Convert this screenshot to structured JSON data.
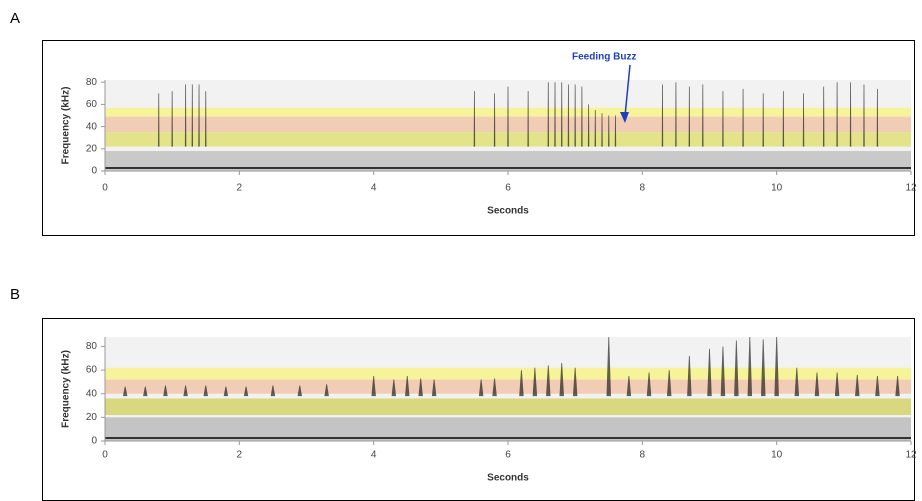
{
  "chart_data": [
    {
      "type": "spectrogram",
      "panel": "A",
      "xlabel": "Seconds",
      "ylabel": "Frequency (kHz)",
      "annotation": "Feeding Buzz",
      "xlim": [
        0,
        12
      ],
      "xticks": [
        0,
        2,
        4,
        6,
        8,
        10,
        12
      ],
      "ylim": [
        0,
        82
      ],
      "yticks": [
        0,
        20,
        40,
        60,
        80
      ],
      "bands": [
        {
          "range": [
            0,
            82
          ],
          "color": "#f2f2f2"
        },
        {
          "range": [
            0,
            18
          ],
          "color": "#c9c9c9"
        },
        {
          "range": [
            22,
            35
          ],
          "color": "#e3e38a"
        },
        {
          "range": [
            35,
            49
          ],
          "color": "#f2cdb6"
        },
        {
          "range": [
            49,
            57
          ],
          "color": "#f7f39a"
        }
      ],
      "pulses": {
        "x": [
          0.8,
          1.0,
          1.2,
          1.3,
          1.4,
          1.5,
          5.5,
          5.8,
          6.0,
          6.3,
          6.6,
          6.7,
          6.8,
          6.9,
          7.0,
          7.1,
          7.2,
          7.3,
          7.4,
          7.5,
          7.6,
          8.3,
          8.5,
          8.7,
          8.9,
          9.2,
          9.5,
          9.8,
          10.1,
          10.4,
          10.7,
          10.9,
          11.1,
          11.3,
          11.5
        ],
        "high": [
          70,
          72,
          78,
          78,
          78,
          72,
          72,
          70,
          76,
          72,
          80,
          80,
          80,
          78,
          78,
          76,
          60,
          55,
          52,
          50,
          50,
          78,
          80,
          76,
          78,
          72,
          74,
          70,
          72,
          70,
          76,
          80,
          80,
          78,
          74
        ],
        "low": [
          22,
          22,
          22,
          22,
          22,
          22,
          22,
          22,
          22,
          22,
          22,
          22,
          22,
          22,
          22,
          22,
          22,
          22,
          22,
          22,
          22,
          22,
          22,
          22,
          22,
          22,
          22,
          22,
          22,
          22,
          22,
          22,
          22,
          22,
          22
        ]
      }
    },
    {
      "type": "spectrogram",
      "panel": "B",
      "xlabel": "Seconds",
      "ylabel": "Frequency (kHz)",
      "xlim": [
        0,
        12
      ],
      "xticks": [
        0,
        2,
        4,
        6,
        8,
        10,
        12
      ],
      "ylim": [
        0,
        88
      ],
      "yticks": [
        0,
        20,
        40,
        60,
        80
      ],
      "bands": [
        {
          "range": [
            0,
            88
          ],
          "color": "#f2f2f2"
        },
        {
          "range": [
            0,
            20
          ],
          "color": "#c4c4c4"
        },
        {
          "range": [
            22,
            36
          ],
          "color": "#d9d77f"
        },
        {
          "range": [
            40,
            52
          ],
          "color": "#f2cdb6"
        },
        {
          "range": [
            52,
            62
          ],
          "color": "#f7f39a"
        }
      ],
      "pulses": {
        "x": [
          0.3,
          0.6,
          0.9,
          1.2,
          1.5,
          1.8,
          2.1,
          2.5,
          2.9,
          3.3,
          4.0,
          4.3,
          4.5,
          4.7,
          4.9,
          5.6,
          5.8,
          6.2,
          6.4,
          6.6,
          6.8,
          7.0,
          7.5,
          7.8,
          8.1,
          8.4,
          8.7,
          9.0,
          9.2,
          9.4,
          9.6,
          9.8,
          10.0,
          10.3,
          10.6,
          10.9,
          11.2,
          11.5,
          11.8
        ],
        "high": [
          46,
          46,
          47,
          47,
          47,
          46,
          46,
          47,
          47,
          48,
          55,
          52,
          55,
          53,
          52,
          52,
          53,
          60,
          62,
          64,
          66,
          62,
          88,
          55,
          58,
          60,
          72,
          78,
          80,
          85,
          88,
          86,
          88,
          62,
          58,
          58,
          56,
          55,
          55
        ],
        "low": [
          38,
          38,
          38,
          38,
          38,
          38,
          38,
          38,
          38,
          38,
          38,
          38,
          38,
          38,
          38,
          38,
          38,
          38,
          38,
          38,
          38,
          38,
          38,
          38,
          38,
          38,
          38,
          38,
          38,
          38,
          38,
          38,
          38,
          38,
          38,
          38,
          38,
          38,
          38
        ]
      }
    }
  ]
}
